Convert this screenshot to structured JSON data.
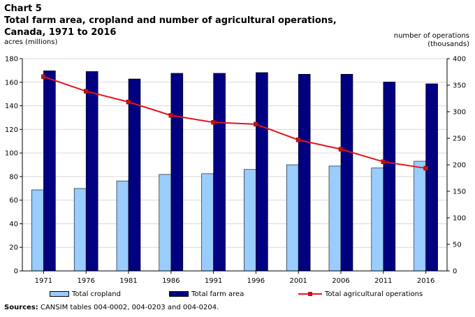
{
  "header": {
    "chart_number": "Chart 5",
    "title_line1": "Total farm area, cropland and number of agricultural operations,",
    "title_line2": "Canada, 1971 to 2016"
  },
  "axes": {
    "left_title": "acres (millions)",
    "right_title_line1": "number of operations",
    "right_title_line2": "(thousands)"
  },
  "legend": {
    "cropland": "Total cropland",
    "farm_area": "Total farm area",
    "operations": "Total agricultural operations"
  },
  "source": {
    "label": "Sources:",
    "text": "CANSIM tables 004-0002, 004-0203 and 004-0204."
  },
  "colors": {
    "cropland": "#99ccff",
    "farm_area": "#000080",
    "operations": "#e8141b",
    "marker": "#c0141b"
  },
  "chart_data": {
    "type": "bar",
    "categories": [
      "1971",
      "1976",
      "1981",
      "1986",
      "1991",
      "1996",
      "2001",
      "2006",
      "2011",
      "2016"
    ],
    "series": [
      {
        "name": "Total cropland",
        "type": "bar",
        "axis": "left",
        "values": [
          68.7,
          69.9,
          76.3,
          81.8,
          82.4,
          86.0,
          90.0,
          88.9,
          87.3,
          93.0
        ]
      },
      {
        "name": "Total farm area",
        "type": "bar",
        "axis": "left",
        "values": [
          169.7,
          169.1,
          162.8,
          167.6,
          167.6,
          168.2,
          166.8,
          166.8,
          160.2,
          158.7
        ]
      },
      {
        "name": "Total agricultural operations",
        "type": "line",
        "axis": "right",
        "values": [
          366.1,
          338.6,
          318.4,
          293.1,
          280.0,
          276.5,
          246.9,
          229.4,
          205.7,
          193.5
        ]
      }
    ],
    "y_left": {
      "min": 0,
      "max": 180,
      "step": 20
    },
    "y_right": {
      "min": 0,
      "max": 400,
      "step": 50
    },
    "legend_position": "bottom"
  }
}
